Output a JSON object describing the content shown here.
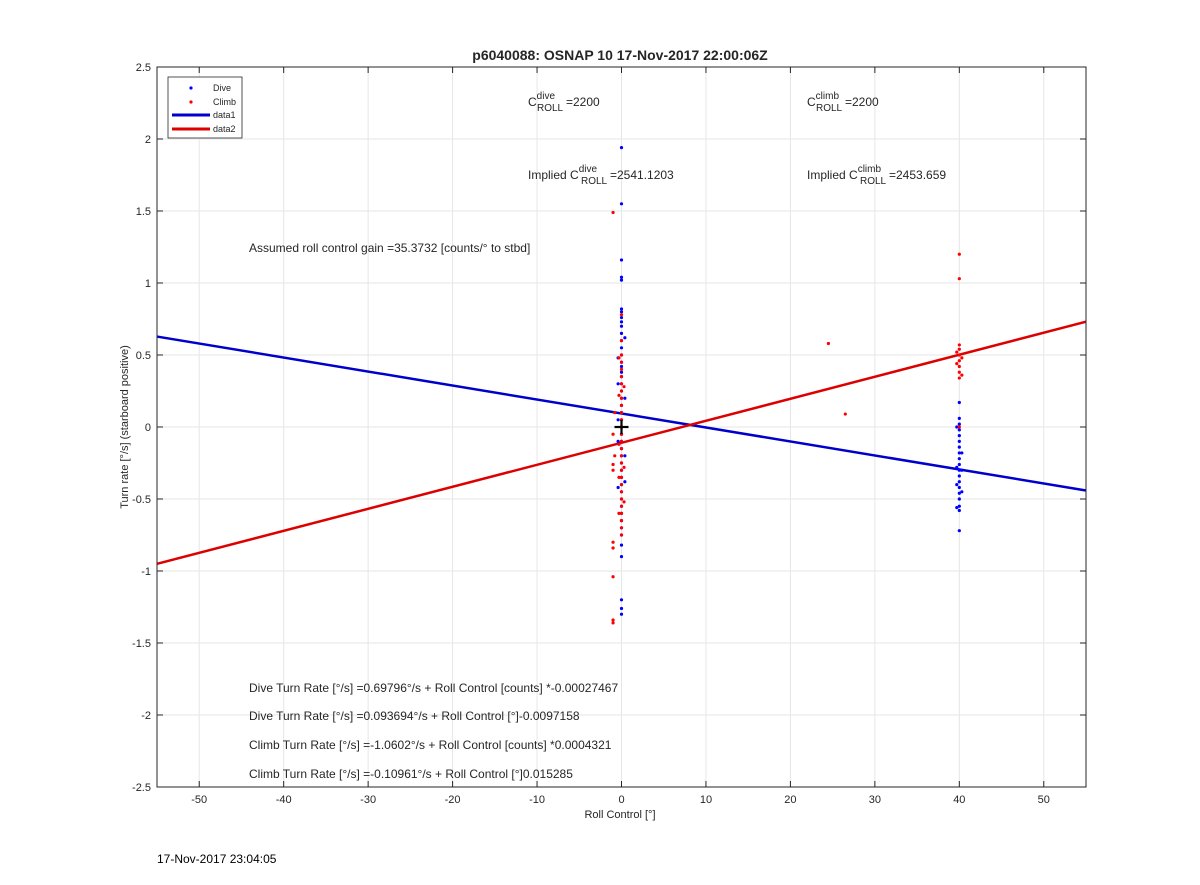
{
  "chart_data": {
    "type": "scatter",
    "title": "p6040088: OSNAP 10 17-Nov-2017 22:00:06Z",
    "xlabel": "Roll Control [°]",
    "ylabel": "Turn rate [°/s] (starboard positive)",
    "xlim": [
      -55,
      55
    ],
    "ylim": [
      -2.5,
      2.5
    ],
    "xticks": [
      "-50",
      "-40",
      "-30",
      "-20",
      "-10",
      "0",
      "10",
      "20",
      "30",
      "40",
      "50"
    ],
    "yticks": [
      "-2.5",
      "-2",
      "-1.5",
      "-1",
      "-0.5",
      "0",
      "0.5",
      "1",
      "1.5",
      "2",
      "2.5"
    ],
    "grid": true,
    "legend": {
      "placement": "top-left",
      "entries": [
        {
          "label": "Dive",
          "color": "#0000ff",
          "style": "dot"
        },
        {
          "label": "Climb",
          "color": "#ff0000",
          "style": "dot"
        },
        {
          "label": "data1",
          "color": "#0000cc",
          "style": "line"
        },
        {
          "label": "data2",
          "color": "#dd0000",
          "style": "line"
        }
      ]
    },
    "series": [
      {
        "name": "Dive",
        "color": "#0000ff",
        "points": [
          [
            0,
            1.94
          ],
          [
            0,
            1.55
          ],
          [
            0,
            1.16
          ],
          [
            0,
            1.04
          ],
          [
            0,
            1.02
          ],
          [
            0,
            0.82
          ],
          [
            0,
            0.8
          ],
          [
            0,
            0.76
          ],
          [
            0,
            0.73
          ],
          [
            0,
            0.7
          ],
          [
            0,
            0.65
          ],
          [
            0,
            0.6
          ],
          [
            0,
            0.55
          ],
          [
            0,
            0.5
          ],
          [
            0,
            0.45
          ],
          [
            0,
            0.42
          ],
          [
            0,
            0.38
          ],
          [
            0,
            0.35
          ],
          [
            0,
            0.3
          ],
          [
            0,
            0.25
          ],
          [
            0,
            0.2
          ],
          [
            0,
            0.15
          ],
          [
            0,
            0.1
          ],
          [
            0,
            0.05
          ],
          [
            0,
            0.0
          ],
          [
            0,
            -0.05
          ],
          [
            0,
            -0.1
          ],
          [
            0,
            -0.15
          ],
          [
            0,
            -0.2
          ],
          [
            0,
            -0.25
          ],
          [
            0,
            -0.3
          ],
          [
            0,
            -0.35
          ],
          [
            0,
            -0.4
          ],
          [
            0,
            -0.45
          ],
          [
            0,
            -0.5
          ],
          [
            0,
            -0.55
          ],
          [
            0,
            -0.6
          ],
          [
            0,
            -0.65
          ],
          [
            0,
            -0.7
          ],
          [
            0,
            -0.75
          ],
          [
            0,
            -0.82
          ],
          [
            0,
            -0.9
          ],
          [
            0,
            -1.2
          ],
          [
            0,
            -1.26
          ],
          [
            0,
            -1.3
          ],
          [
            -0.4,
            0.48
          ],
          [
            -0.4,
            0.3
          ],
          [
            -0.4,
            -0.1
          ],
          [
            -0.4,
            -0.42
          ],
          [
            0.4,
            0.62
          ],
          [
            0.4,
            0.2
          ],
          [
            0.4,
            -0.2
          ],
          [
            0.4,
            -0.38
          ],
          [
            -0.4,
            0.05
          ],
          [
            40,
            0.17
          ],
          [
            40,
            0.06
          ],
          [
            40,
            0.02
          ],
          [
            40,
            -0.02
          ],
          [
            40,
            -0.06
          ],
          [
            40,
            -0.1
          ],
          [
            40,
            -0.14
          ],
          [
            40,
            -0.18
          ],
          [
            40,
            -0.22
          ],
          [
            40,
            -0.26
          ],
          [
            40,
            -0.3
          ],
          [
            40,
            -0.34
          ],
          [
            40,
            -0.38
          ],
          [
            40,
            -0.42
          ],
          [
            40,
            -0.46
          ],
          [
            40,
            -0.5
          ],
          [
            40,
            -0.55
          ],
          [
            40,
            -0.58
          ],
          [
            40,
            -0.72
          ],
          [
            39.7,
            -0.28
          ],
          [
            39.7,
            -0.4
          ],
          [
            39.7,
            -0.56
          ],
          [
            39.7,
            0.0
          ],
          [
            40.3,
            -0.18
          ],
          [
            40.3,
            -0.3
          ],
          [
            40.3,
            -0.45
          ]
        ]
      },
      {
        "name": "Climb",
        "color": "#ff0000",
        "points": [
          [
            -1,
            1.49
          ],
          [
            0,
            0.78
          ],
          [
            0,
            0.6
          ],
          [
            0,
            0.5
          ],
          [
            0,
            0.45
          ],
          [
            0,
            0.4
          ],
          [
            0,
            0.35
          ],
          [
            0,
            0.3
          ],
          [
            0,
            0.25
          ],
          [
            0,
            0.2
          ],
          [
            0,
            0.15
          ],
          [
            0,
            0.1
          ],
          [
            0,
            0.05
          ],
          [
            0,
            0.0
          ],
          [
            0,
            -0.05
          ],
          [
            0,
            -0.1
          ],
          [
            0,
            -0.15
          ],
          [
            0,
            -0.2
          ],
          [
            0,
            -0.25
          ],
          [
            0,
            -0.3
          ],
          [
            0,
            -0.35
          ],
          [
            0,
            -0.4
          ],
          [
            0,
            -0.45
          ],
          [
            0,
            -0.5
          ],
          [
            0,
            -0.55
          ],
          [
            0,
            -0.6
          ],
          [
            0,
            -0.65
          ],
          [
            0,
            -0.7
          ],
          [
            0,
            -0.75
          ],
          [
            -0.3,
            0.48
          ],
          [
            -0.3,
            0.22
          ],
          [
            -0.3,
            -0.12
          ],
          [
            -0.3,
            -0.35
          ],
          [
            -0.3,
            -0.6
          ],
          [
            0.3,
            0.28
          ],
          [
            0.3,
            -0.28
          ],
          [
            0.3,
            -0.52
          ],
          [
            -1,
            -0.26
          ],
          [
            -1,
            -0.3
          ],
          [
            -1,
            -0.8
          ],
          [
            -1,
            -0.84
          ],
          [
            -1,
            -1.04
          ],
          [
            -1,
            -1.34
          ],
          [
            -1,
            -1.36
          ],
          [
            -1,
            -0.05
          ],
          [
            -0.8,
            0.1
          ],
          [
            -0.8,
            -0.2
          ],
          [
            24.5,
            0.58
          ],
          [
            26.5,
            0.09
          ],
          [
            40,
            1.2
          ],
          [
            40,
            1.03
          ],
          [
            40,
            0.57
          ],
          [
            40,
            0.54
          ],
          [
            40,
            0.5
          ],
          [
            40,
            0.46
          ],
          [
            40,
            0.42
          ],
          [
            40,
            0.38
          ],
          [
            40,
            0.34
          ],
          [
            39.7,
            0.52
          ],
          [
            39.7,
            0.44
          ],
          [
            40.3,
            0.48
          ],
          [
            40.3,
            0.36
          ],
          [
            40,
            0.0
          ]
        ]
      }
    ],
    "lines": [
      {
        "name": "data1",
        "color": "#0000cc",
        "intercept": 0.093694,
        "slope": -0.0097158
      },
      {
        "name": "data2",
        "color": "#dd0000",
        "intercept": -0.10961,
        "slope": 0.015285
      }
    ],
    "marker": {
      "x": 0,
      "y": 0,
      "symbol": "+"
    },
    "annotations": {
      "c_dive_prefix": "C",
      "c_dive_sup": "dive",
      "c_dive_sub": "ROLL",
      "c_dive_value": "=2200",
      "c_climb_prefix": "C",
      "c_climb_sup": "climb",
      "c_climb_sub": "ROLL",
      "c_climb_value": "=2200",
      "implied_dive_prefix": "Implied C",
      "implied_dive_sup": "dive",
      "implied_dive_sub": "ROLL",
      "implied_dive_value": "=2541.1203",
      "implied_climb_prefix": "Implied C",
      "implied_climb_sup": "climb",
      "implied_climb_sub": "ROLL",
      "implied_climb_value": "=2453.659",
      "gain": "Assumed roll control gain =35.3732 [counts/° to stbd]",
      "eq1": "Dive Turn Rate [°/s] =0.69796°/s + Roll Control [counts] *-0.00027467",
      "eq2": "Dive Turn Rate [°/s] =0.093694°/s + Roll Control [°]-0.0097158",
      "eq3": "Climb Turn Rate [°/s] =-1.0602°/s + Roll Control [counts] *0.0004321",
      "eq4": "Climb Turn Rate [°/s] =-0.10961°/s + Roll Control [°]0.015285"
    }
  },
  "footer": {
    "timestamp": "17-Nov-2017 23:04:05"
  }
}
